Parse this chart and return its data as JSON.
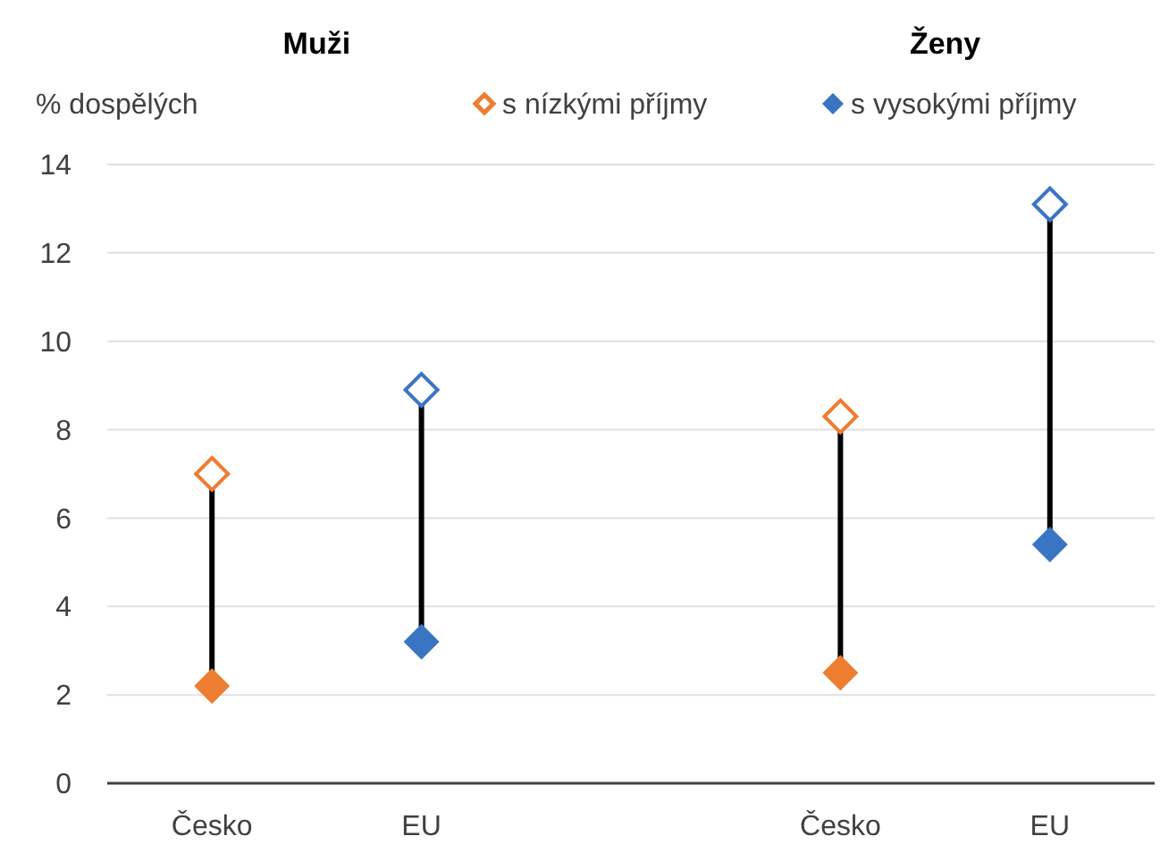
{
  "chart_data": {
    "type": "scatter",
    "ylabel": "% dospělých",
    "annotations": [
      "Muži",
      "Ženy"
    ],
    "categories": [
      "Česko",
      "EU",
      null,
      "Česko",
      "EU"
    ],
    "ylim": [
      0,
      14
    ],
    "yticks": [
      0,
      2,
      4,
      6,
      8,
      10,
      12,
      14
    ],
    "grid": "y",
    "legend": "top right",
    "marker": "diamond",
    "series": [
      {
        "name": "s nízkými příjmy",
        "color": "#ed7d31",
        "colors": [
          "#ed7d31",
          "#3a75c4",
          null,
          "#ed7d31",
          "#3a75c4"
        ],
        "values": [
          7.0,
          8.9,
          null,
          8.3,
          13.1
        ]
      },
      {
        "name": "s vysokými příjmy",
        "color": "#3a75c4",
        "colors": [
          "#ed7d31",
          "#3a75c4",
          null,
          "#ed7d31",
          "#3a75c4"
        ],
        "values": [
          2.2,
          3.2,
          null,
          2.5,
          5.4
        ]
      }
    ]
  }
}
